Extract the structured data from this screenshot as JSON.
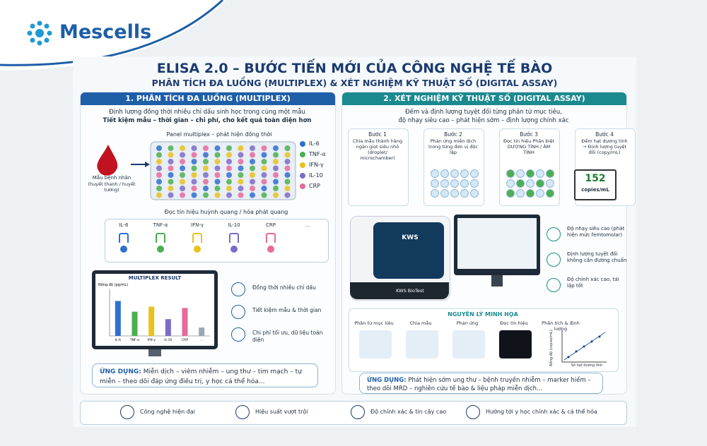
{
  "brand": "Mescells",
  "header": {
    "title": "ELISA 2.0 – BƯỚC TIẾN MỚI CỦA CÔNG NGHỆ TẾ BÀO",
    "subtitle": "PHÂN TÍCH ĐA LUỒNG (MULTIPLEX) & XÉT NGHIỆM KỸ THUẬT SỐ (DIGITAL ASSAY)"
  },
  "left": {
    "heading": "1. PHÂN TÍCH ĐA LUỒNG (MULTIPLEX)",
    "intro": [
      "Định lượng đồng thời nhiều chỉ dấu sinh học trong cùng một mẫu",
      "Tiết kiệm mẫu – thời gian – chi phí, cho kết quả toàn diện hơn"
    ],
    "panel_label": "Panel multiplex – phát hiện đồng thời",
    "sample_label": [
      "Mẫu bệnh nhân",
      "(huyết thanh / huyết tương)"
    ],
    "legend": [
      "IL-6",
      "TNF-α",
      "IFN-γ",
      "IL-10",
      "CRP"
    ],
    "reading": "Đọc tín hiệu huỳnh quang / hóa phát quang",
    "antibodies": [
      "IL-6",
      "TNF-α",
      "IFN-γ",
      "IL-10",
      "CRP",
      "..."
    ],
    "features": [
      "Đồng thời nhiều chỉ dấu",
      "Tiết kiệm mẫu & thời gian",
      "Chi phí tối ưu, dữ liệu toàn diện"
    ],
    "application": {
      "label": "ỨNG DỤNG:",
      "text": "Miễn dịch – viêm nhiễm – ung thư – tim mạch – tự miễn – theo dõi đáp ứng điều trị, y học cá thể hóa..."
    }
  },
  "chart_data": {
    "type": "bar",
    "title": "MULTIPLEX RESULT",
    "y_label": "Nồng độ (pg/mL)",
    "categories": [
      "IL-6",
      "TNF-α",
      "IFN-γ",
      "IL-10",
      "CRP",
      "..."
    ],
    "values": [
      75,
      52,
      63,
      36,
      60,
      18
    ],
    "colors": [
      "#2f6fd0",
      "#4caf50",
      "#e8c21c",
      "#7c6bc8",
      "#e66a9a",
      "#9aa7b4"
    ],
    "ylim": [
      0,
      100
    ]
  },
  "right": {
    "heading": "2. XÉT NGHIỆM KỸ THUẬT SỐ (DIGITAL ASSAY)",
    "intro": [
      "Đếm và định lượng tuyệt đối từng phân tử mục tiêu,",
      "độ nhạy siêu cao – phát hiện sớm – định lượng chính xác"
    ],
    "steps": [
      {
        "title": "Bước 1",
        "text": "Chia mẫu thành hàng ngàn giọt siêu nhỏ (droplet/ microchamber)"
      },
      {
        "title": "Bước 2",
        "text": "Phản ứng miễn dịch trong từng đơn vị độc lập"
      },
      {
        "title": "Bước 3",
        "text": "Đọc tín hiệu Phân biệt DƯƠNG TÍNH / ÂM TÍNH"
      },
      {
        "title": "Bước 4",
        "text": "Đếm hạt dương tính → Định lượng tuyệt đối (copy/mL)"
      }
    ],
    "result": {
      "value": "152",
      "unit": "copies/mL"
    },
    "device": {
      "brand": "KWS",
      "label": "KWS BioTest"
    },
    "features": [
      "Độ nhạy siêu cao (phát hiện mức femtomolar)",
      "Định lượng tuyệt đối không cần đường chuẩn",
      "Độ chính xác cao, tái lập tốt"
    ],
    "principle": {
      "title": "NGUYÊN LÝ MINH HỌA",
      "steps": [
        "Phân tử mục tiêu",
        "Chia mẫu",
        "Phản ứng",
        "Đọc tín hiệu",
        "Phân tích & định lượng"
      ],
      "y_label": "Nồng độ (copies/mL)",
      "x_label": "Số hạt dương tính"
    },
    "application": {
      "label": "ỨNG DỤNG:",
      "text": "Phát hiện sớm ung thư – bệnh truyền nhiễm – marker hiếm – theo dõi MRD – nghiên cứu tế bào & liệu pháp miễn dịch..."
    }
  },
  "footer": [
    "Công nghệ hiện đại",
    "Hiệu suất vượt trội",
    "Độ chính xác & tin cậy cao",
    "Hướng tới y học chính xác & cá thể hóa"
  ]
}
